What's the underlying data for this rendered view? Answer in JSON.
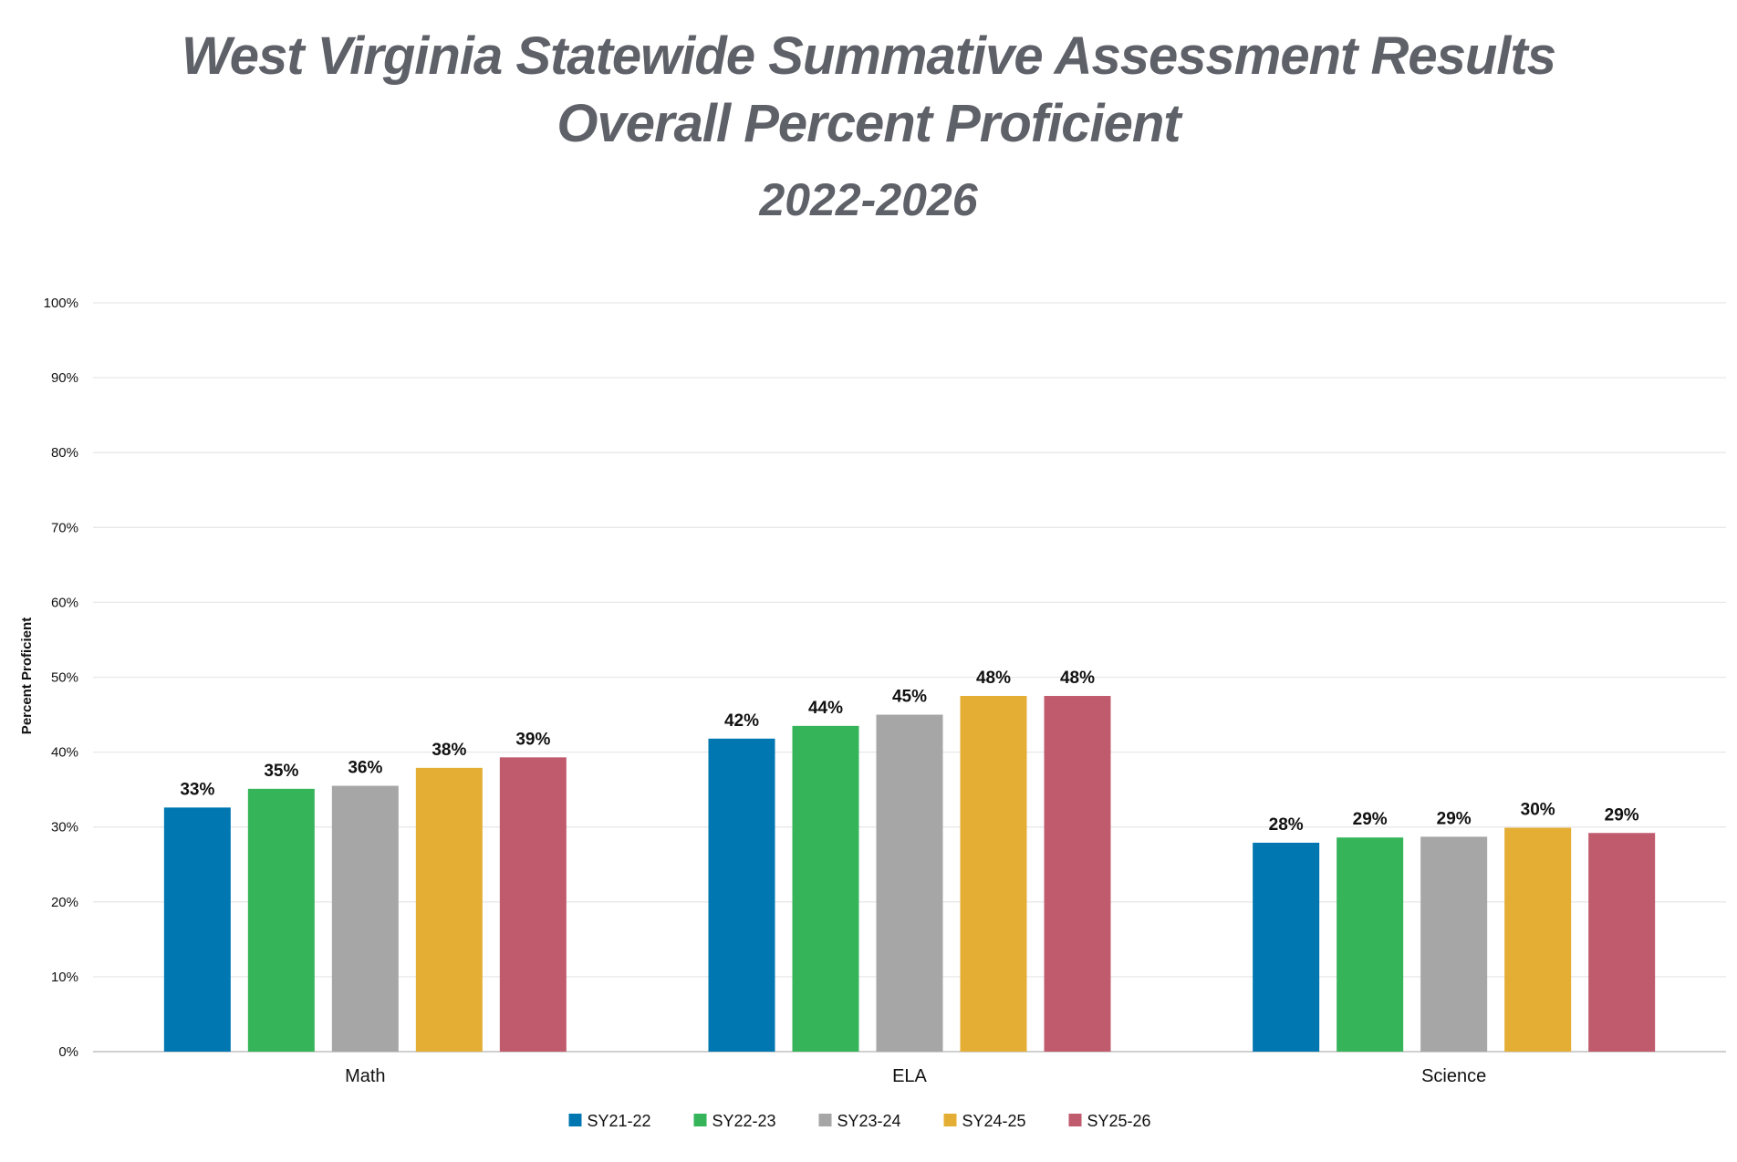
{
  "chart_data": {
    "type": "bar",
    "title": "West Virginia Statewide Summative Assessment Results",
    "subtitle": "Overall Percent Proficient",
    "subtitle2": "2022-2026",
    "ylabel": "Percent Proficient",
    "xlabel": "",
    "ylim": [
      0,
      100
    ],
    "yticks": [
      "0%",
      "10%",
      "20%",
      "30%",
      "40%",
      "50%",
      "60%",
      "70%",
      "80%",
      "90%",
      "100%"
    ],
    "grid": true,
    "legend_position": "bottom",
    "categories": [
      "Math",
      "ELA",
      "Science"
    ],
    "series": [
      {
        "name": "SY21-22",
        "color": "#0077b0",
        "values": [
          32.6,
          41.8,
          27.9
        ],
        "labels": [
          "33%",
          "42%",
          "28%"
        ]
      },
      {
        "name": "SY22-23",
        "color": "#36b45a",
        "values": [
          35.1,
          43.5,
          28.6
        ],
        "labels": [
          "35%",
          "44%",
          "29%"
        ]
      },
      {
        "name": "SY23-24",
        "color": "#a6a6a6",
        "values": [
          35.5,
          45.0,
          28.7
        ],
        "labels": [
          "36%",
          "45%",
          "29%"
        ]
      },
      {
        "name": "SY24-25",
        "color": "#e4ad34",
        "values": [
          37.9,
          47.5,
          29.9
        ],
        "labels": [
          "38%",
          "48%",
          "30%"
        ]
      },
      {
        "name": "SY25-26",
        "color": "#bf5b6d",
        "values": [
          39.3,
          47.5,
          29.2
        ],
        "labels": [
          "39%",
          "48%",
          "29%"
        ]
      }
    ]
  }
}
